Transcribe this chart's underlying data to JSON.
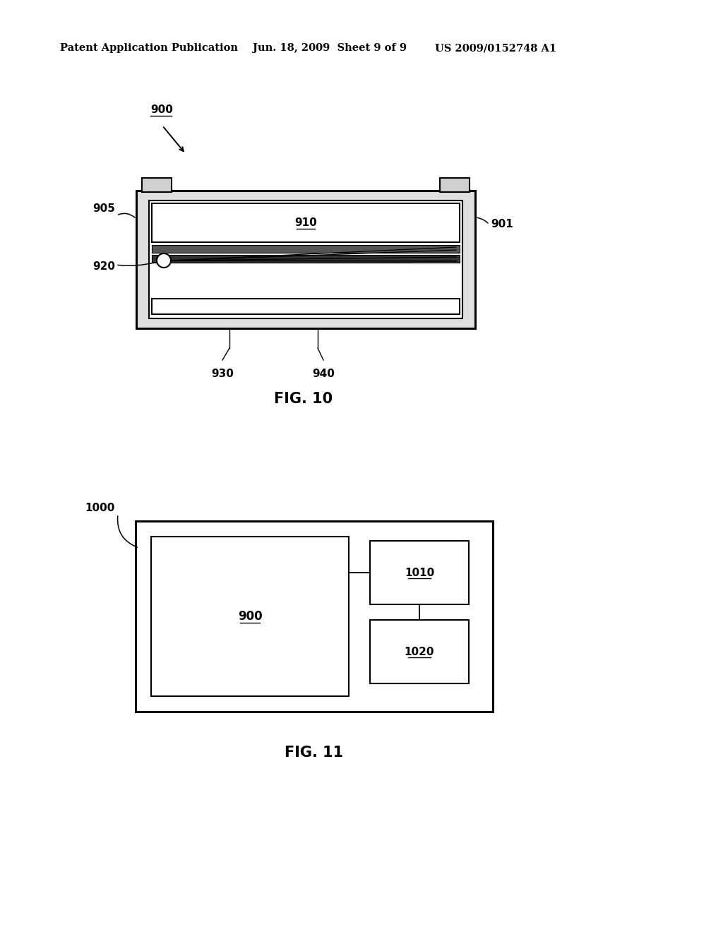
{
  "bg_color": "#ffffff",
  "header_left": "Patent Application Publication",
  "header_center": "Jun. 18, 2009  Sheet 9 of 9",
  "header_right": "US 2009/0152748 A1",
  "fig10_label": "FIG. 10",
  "fig11_label": "FIG. 11",
  "label_900": "900",
  "label_901": "901",
  "label_905": "905",
  "label_910": "910",
  "label_920": "920",
  "label_930": "930",
  "label_940": "940",
  "label_1000": "1000",
  "label_1010": "1010",
  "label_1020": "1020",
  "label_900b": "900"
}
